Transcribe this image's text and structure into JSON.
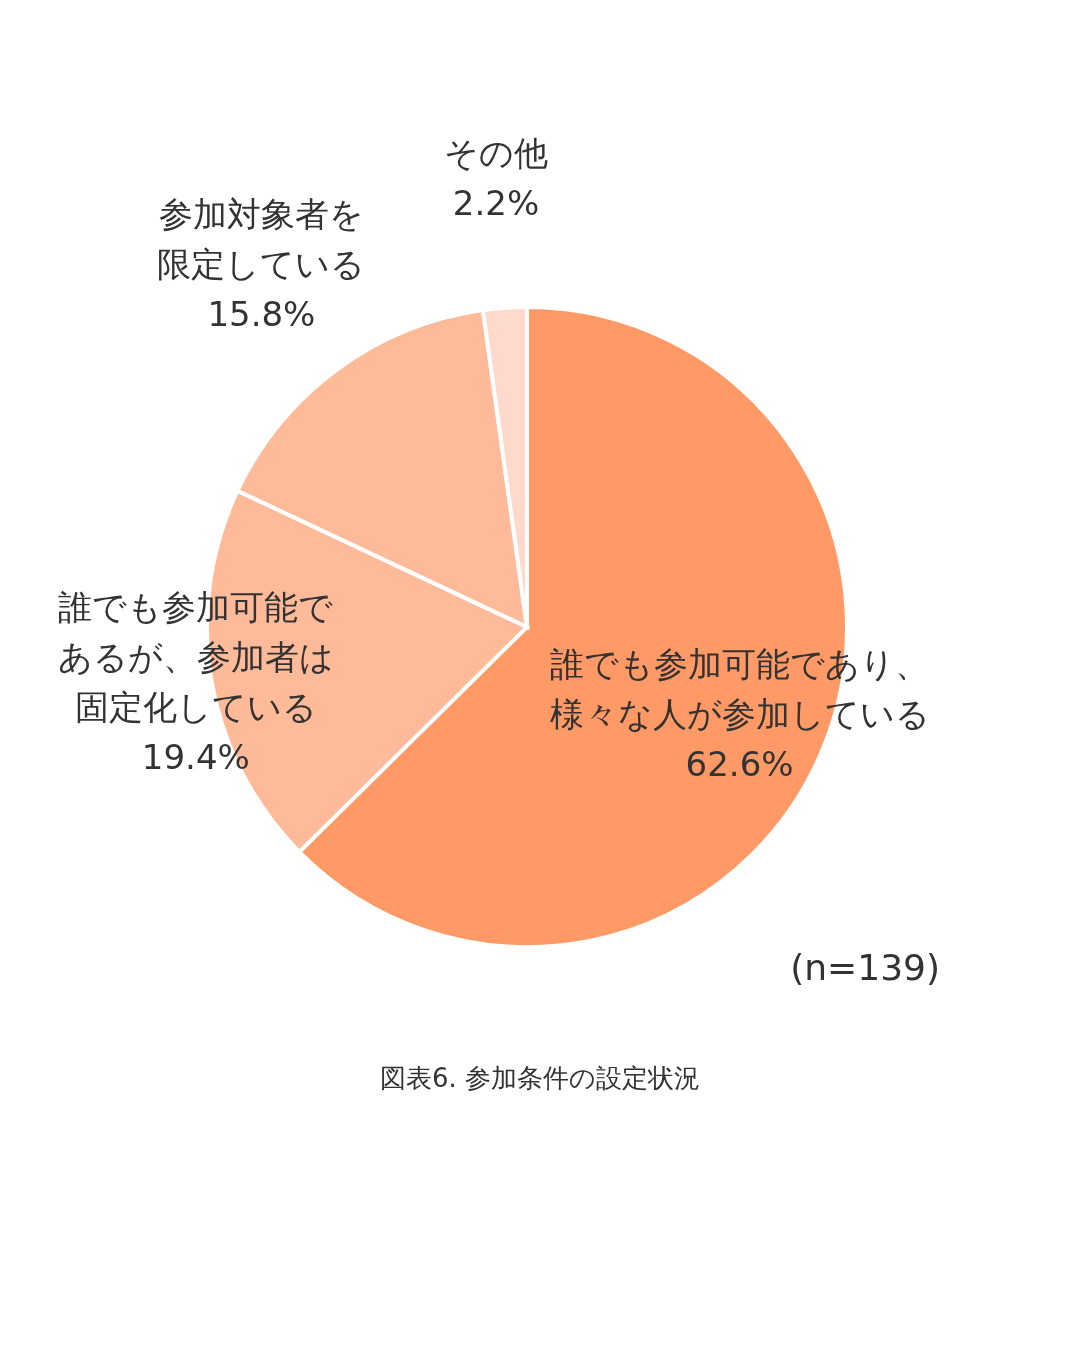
{
  "chart_data": {
    "type": "pie",
    "title": "図表6. 参加条件の設定状況",
    "categories": [
      "誰でも参加可能であり、様々な人が参加している",
      "誰でも参加可能であるが、参加者は固定化している",
      "参加対象者を限定している",
      "その他"
    ],
    "values": [
      62.6,
      19.4,
      15.8,
      2.2
    ],
    "value_labels": [
      "62.6%",
      "19.4%",
      "15.8%",
      "2.2%"
    ],
    "colors": [
      "#ff9966",
      "#ffbb99",
      "#ffbb99",
      "#ffd9cc"
    ],
    "annotations": [
      "(n=139)"
    ]
  }
}
